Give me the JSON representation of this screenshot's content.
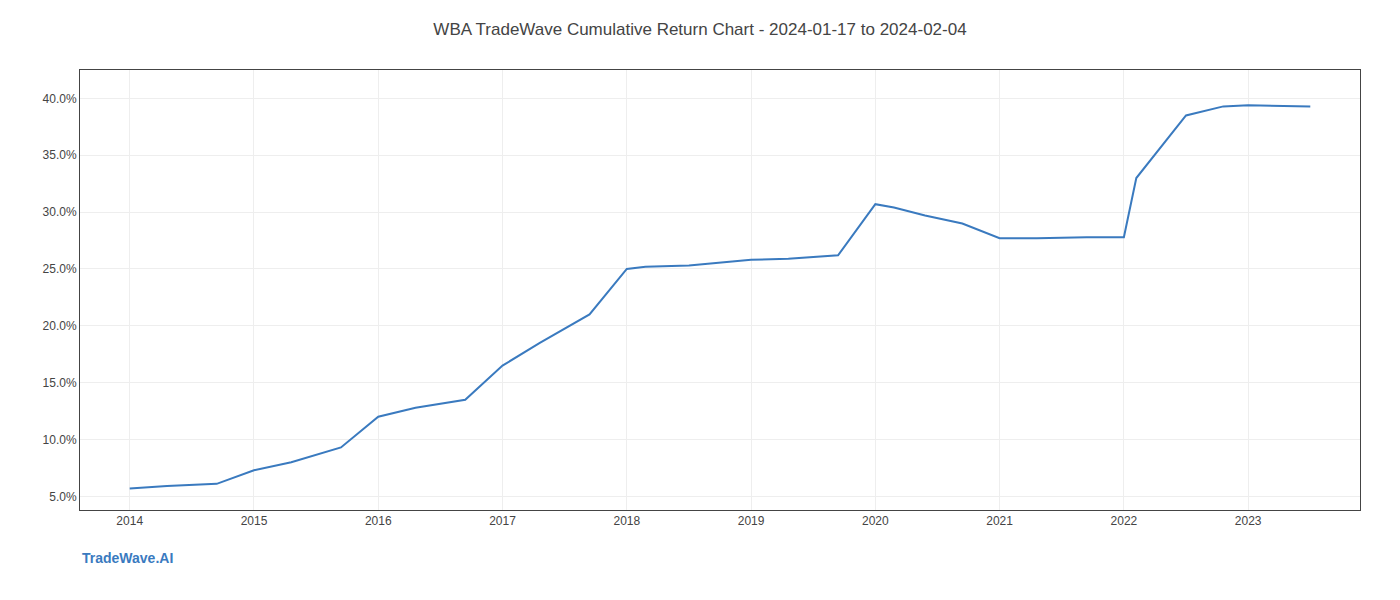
{
  "chart_data": {
    "type": "line",
    "title": "WBA TradeWave Cumulative Return Chart - 2024-01-17 to 2024-02-04",
    "annotations": [
      {
        "text": "TradeWave.AI"
      }
    ],
    "x": [
      2014.0,
      2014.3,
      2014.7,
      2015.0,
      2015.3,
      2015.7,
      2016.0,
      2016.3,
      2016.7,
      2017.0,
      2017.3,
      2017.7,
      2018.0,
      2018.15,
      2018.5,
      2019.0,
      2019.3,
      2019.7,
      2020.0,
      2020.15,
      2020.4,
      2020.7,
      2021.0,
      2021.3,
      2021.7,
      2022.0,
      2022.1,
      2022.5,
      2022.8,
      2023.0,
      2023.5
    ],
    "values": [
      0.057,
      0.059,
      0.061,
      0.073,
      0.08,
      0.093,
      0.12,
      0.128,
      0.135,
      0.165,
      0.185,
      0.21,
      0.25,
      0.252,
      0.253,
      0.258,
      0.259,
      0.262,
      0.307,
      0.304,
      0.297,
      0.29,
      0.277,
      0.277,
      0.278,
      0.278,
      0.33,
      0.385,
      0.393,
      0.394,
      0.393
    ],
    "color": "#3a7abf",
    "xlim": [
      2013.6,
      2023.9
    ],
    "ylim": [
      0.038,
      0.425
    ],
    "xticks": [
      2014,
      2015,
      2016,
      2017,
      2018,
      2019,
      2020,
      2021,
      2022,
      2023
    ],
    "yticks": [
      {
        "value": 0.05,
        "label": "5.0%"
      },
      {
        "value": 0.1,
        "label": "10.0%"
      },
      {
        "value": 0.15,
        "label": "15.0%"
      },
      {
        "value": 0.2,
        "label": "20.0%"
      },
      {
        "value": 0.25,
        "label": "25.0%"
      },
      {
        "value": 0.3,
        "label": "30.0%"
      },
      {
        "value": 0.35,
        "label": "35.0%"
      },
      {
        "value": 0.4,
        "label": "40.0%"
      }
    ],
    "grid": true
  }
}
